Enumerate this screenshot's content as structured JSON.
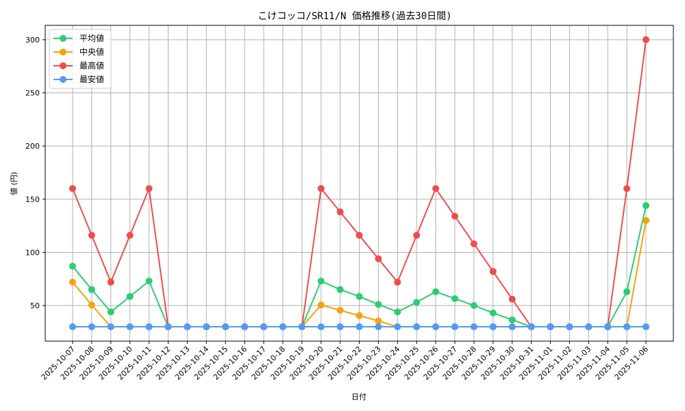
{
  "chart_data": {
    "type": "line",
    "title": "こけコッコ/SR11/N 価格推移(過去30日間)",
    "xlabel": "日付",
    "ylabel": "値 (円)",
    "ylim": [
      16.5,
      313.5
    ],
    "yticks": [
      50,
      100,
      150,
      200,
      250,
      300
    ],
    "grid": true,
    "legend_position": "upper left",
    "categories": [
      "2025-10-07",
      "2025-10-08",
      "2025-10-09",
      "2025-10-10",
      "2025-10-11",
      "2025-10-12",
      "2025-10-13",
      "2025-10-14",
      "2025-10-15",
      "2025-10-16",
      "2025-10-17",
      "2025-10-18",
      "2025-10-19",
      "2025-10-20",
      "2025-10-21",
      "2025-10-22",
      "2025-10-23",
      "2025-10-24",
      "2025-10-25",
      "2025-10-26",
      "2025-10-27",
      "2025-10-28",
      "2025-10-29",
      "2025-10-30",
      "2025-10-31",
      "2025-11-01",
      "2025-11-02",
      "2025-11-03",
      "2025-11-04",
      "2025-11-05",
      "2025-11-06"
    ],
    "series": [
      {
        "name": "平均値",
        "color": "#2ecc71",
        "values": [
          87,
          65,
          44,
          58.5,
          73,
          30,
          30,
          30,
          30,
          30,
          30,
          30,
          30,
          73,
          65,
          58.5,
          51,
          44,
          53,
          63,
          56.5,
          50,
          43,
          36.5,
          30,
          30,
          30,
          30,
          30,
          63,
          144
        ]
      },
      {
        "name": "中央値",
        "color": "#f5a30a",
        "values": [
          72,
          50.5,
          30,
          30,
          30,
          30,
          30,
          30,
          30,
          30,
          30,
          30,
          30,
          50.5,
          45.5,
          40.5,
          35.5,
          30,
          30,
          30,
          30,
          30,
          30,
          30,
          30,
          30,
          30,
          30,
          30,
          30,
          130
        ]
      },
      {
        "name": "最高値",
        "color": "#f04c4c",
        "values": [
          160,
          116,
          72,
          116,
          160,
          30,
          30,
          30,
          30,
          30,
          30,
          30,
          30,
          160,
          138,
          116,
          94,
          72,
          116,
          160,
          134,
          108,
          82,
          56,
          30,
          30,
          30,
          30,
          30,
          160,
          300
        ]
      },
      {
        "name": "最安値",
        "color": "#4f9cf5",
        "values": [
          30,
          30,
          30,
          30,
          30,
          30,
          30,
          30,
          30,
          30,
          30,
          30,
          30,
          30,
          30,
          30,
          30,
          30,
          30,
          30,
          30,
          30,
          30,
          30,
          30,
          30,
          30,
          30,
          30,
          30,
          30
        ]
      }
    ]
  },
  "colors": {
    "grid": "#b0b0b0",
    "axis": "#000000",
    "legend_border": "#cccccc"
  }
}
